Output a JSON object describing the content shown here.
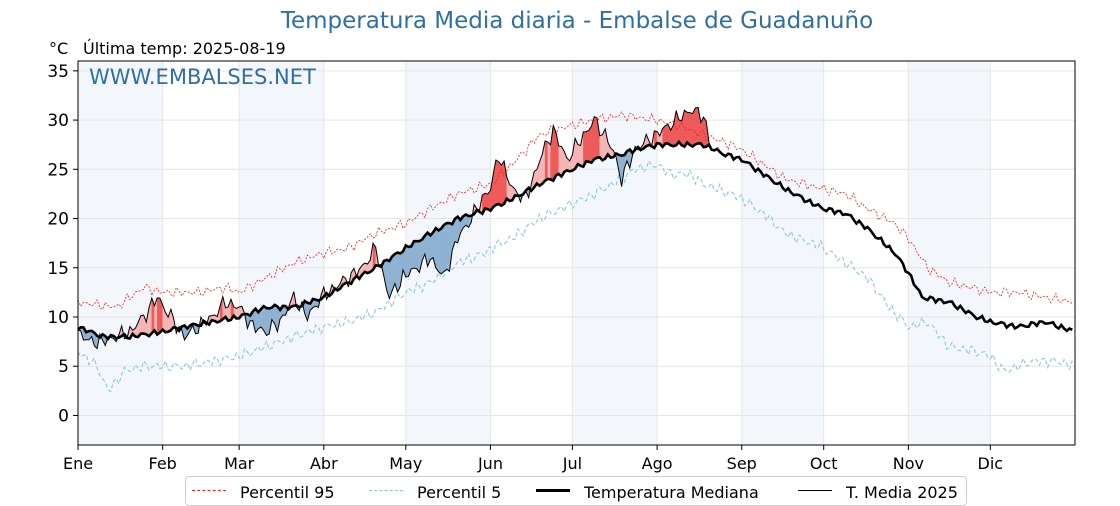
{
  "chart_data": {
    "type": "line",
    "title": "Temperatura Media diaria - Embalse de Guadanuño",
    "unit_label": "°C",
    "last_temp_label": "Última temp: 2025-08-19",
    "watermark": "WWW.EMBALSES.NET",
    "xaxis": {
      "months": [
        "Ene",
        "Feb",
        "Mar",
        "Abr",
        "May",
        "Jun",
        "Jul",
        "Ago",
        "Sep",
        "Oct",
        "Nov",
        "Dic"
      ],
      "month_start_days": [
        1,
        32,
        60,
        91,
        121,
        152,
        182,
        213,
        244,
        274,
        305,
        335
      ],
      "range": [
        1,
        366
      ]
    },
    "yaxis": {
      "range": [
        -3,
        36
      ],
      "ticks": [
        0,
        5,
        10,
        15,
        20,
        25,
        30,
        35
      ]
    },
    "grid": true,
    "legend_position": "bottom",
    "colors": {
      "p95": "#e8241f",
      "p5": "#8ec6dc",
      "median": "#000000",
      "year": "#000000",
      "above_fill": "#f08080",
      "below_fill": "#4a80b0",
      "title": "#2f6fa3",
      "band": "#dce8f5"
    },
    "series": [
      {
        "name": "Percentil 95",
        "key": "p95",
        "points": [
          [
            1,
            11.5
          ],
          [
            15,
            11
          ],
          [
            25,
            13
          ],
          [
            32,
            12.5
          ],
          [
            45,
            12.5
          ],
          [
            55,
            13
          ],
          [
            60,
            12.5
          ],
          [
            70,
            14
          ],
          [
            80,
            15.5
          ],
          [
            91,
            16.5
          ],
          [
            100,
            17
          ],
          [
            110,
            18.5
          ],
          [
            121,
            19.5
          ],
          [
            130,
            21
          ],
          [
            140,
            22.5
          ],
          [
            152,
            23.5
          ],
          [
            160,
            25.5
          ],
          [
            170,
            28.5
          ],
          [
            182,
            29.5
          ],
          [
            190,
            30
          ],
          [
            200,
            30.5
          ],
          [
            213,
            30
          ],
          [
            220,
            29.5
          ],
          [
            230,
            28.5
          ],
          [
            240,
            27.5
          ],
          [
            244,
            27
          ],
          [
            252,
            25.5
          ],
          [
            260,
            24
          ],
          [
            274,
            23
          ],
          [
            282,
            22.5
          ],
          [
            290,
            21
          ],
          [
            300,
            19.5
          ],
          [
            305,
            18
          ],
          [
            312,
            15
          ],
          [
            320,
            13.5
          ],
          [
            328,
            13
          ],
          [
            335,
            12.5
          ],
          [
            345,
            12.5
          ],
          [
            355,
            12
          ],
          [
            366,
            11.5
          ]
        ]
      },
      {
        "name": "Percentil 5",
        "key": "p5",
        "points": [
          [
            1,
            6.5
          ],
          [
            8,
            5
          ],
          [
            12,
            2.5
          ],
          [
            18,
            4.5
          ],
          [
            25,
            5
          ],
          [
            32,
            5
          ],
          [
            40,
            5
          ],
          [
            50,
            5.5
          ],
          [
            60,
            6
          ],
          [
            70,
            7
          ],
          [
            80,
            8
          ],
          [
            91,
            9
          ],
          [
            100,
            9.5
          ],
          [
            110,
            10.5
          ],
          [
            121,
            12.5
          ],
          [
            130,
            13.5
          ],
          [
            140,
            15.5
          ],
          [
            150,
            16.5
          ],
          [
            152,
            17
          ],
          [
            160,
            18
          ],
          [
            170,
            20
          ],
          [
            182,
            21.5
          ],
          [
            190,
            22.5
          ],
          [
            200,
            24
          ],
          [
            205,
            25
          ],
          [
            213,
            25.5
          ],
          [
            218,
            24.5
          ],
          [
            225,
            24.5
          ],
          [
            230,
            23.5
          ],
          [
            240,
            22.5
          ],
          [
            244,
            22
          ],
          [
            252,
            20.5
          ],
          [
            260,
            18.5
          ],
          [
            274,
            17
          ],
          [
            282,
            15.5
          ],
          [
            290,
            14
          ],
          [
            298,
            11
          ],
          [
            305,
            9
          ],
          [
            312,
            9.5
          ],
          [
            320,
            7
          ],
          [
            330,
            6.5
          ],
          [
            335,
            6
          ],
          [
            340,
            4.5
          ],
          [
            350,
            5.5
          ],
          [
            360,
            5.5
          ],
          [
            366,
            5
          ]
        ]
      },
      {
        "name": "Temperatura Mediana",
        "key": "median",
        "points": [
          [
            1,
            9
          ],
          [
            10,
            8
          ],
          [
            20,
            8
          ],
          [
            32,
            8.5
          ],
          [
            40,
            9
          ],
          [
            50,
            9.5
          ],
          [
            60,
            10
          ],
          [
            70,
            11
          ],
          [
            80,
            11
          ],
          [
            91,
            12
          ],
          [
            100,
            13.5
          ],
          [
            110,
            15
          ],
          [
            121,
            17
          ],
          [
            130,
            18.5
          ],
          [
            140,
            20
          ],
          [
            152,
            21
          ],
          [
            160,
            22
          ],
          [
            170,
            23.5
          ],
          [
            182,
            25
          ],
          [
            190,
            26
          ],
          [
            200,
            26.5
          ],
          [
            205,
            27
          ],
          [
            213,
            27.5
          ],
          [
            220,
            27.5
          ],
          [
            230,
            27.5
          ],
          [
            238,
            26.5
          ],
          [
            244,
            26
          ],
          [
            252,
            24.5
          ],
          [
            260,
            23
          ],
          [
            270,
            21.5
          ],
          [
            274,
            21
          ],
          [
            282,
            20.5
          ],
          [
            290,
            19
          ],
          [
            300,
            16.5
          ],
          [
            305,
            14.5
          ],
          [
            310,
            12
          ],
          [
            320,
            11.5
          ],
          [
            330,
            10
          ],
          [
            335,
            9.5
          ],
          [
            345,
            9
          ],
          [
            355,
            9.5
          ],
          [
            366,
            8.5
          ]
        ]
      },
      {
        "name": "T. Media 2025",
        "key": "year",
        "points": [
          [
            1,
            8.5
          ],
          [
            5,
            7.5
          ],
          [
            10,
            7.5
          ],
          [
            15,
            8
          ],
          [
            20,
            8.5
          ],
          [
            25,
            10
          ],
          [
            30,
            12
          ],
          [
            35,
            10
          ],
          [
            40,
            8
          ],
          [
            45,
            9
          ],
          [
            50,
            10
          ],
          [
            55,
            11.5
          ],
          [
            60,
            11
          ],
          [
            65,
            9
          ],
          [
            70,
            8.5
          ],
          [
            75,
            9.5
          ],
          [
            80,
            12
          ],
          [
            85,
            10
          ],
          [
            90,
            12
          ],
          [
            95,
            13
          ],
          [
            100,
            14
          ],
          [
            105,
            15
          ],
          [
            110,
            17
          ],
          [
            115,
            12
          ],
          [
            120,
            14
          ],
          [
            125,
            15
          ],
          [
            130,
            16
          ],
          [
            135,
            14
          ],
          [
            140,
            18
          ],
          [
            145,
            20
          ],
          [
            150,
            22.5
          ],
          [
            152,
            23
          ],
          [
            155,
            26.5
          ],
          [
            160,
            23
          ],
          [
            165,
            22
          ],
          [
            170,
            26
          ],
          [
            175,
            29
          ],
          [
            180,
            26
          ],
          [
            185,
            28
          ],
          [
            190,
            30
          ],
          [
            195,
            28
          ],
          [
            198,
            26
          ],
          [
            200,
            24
          ],
          [
            205,
            27
          ],
          [
            210,
            28
          ],
          [
            215,
            29
          ],
          [
            220,
            30
          ],
          [
            225,
            31
          ],
          [
            230,
            30.5
          ],
          [
            232,
            28
          ]
        ]
      }
    ]
  },
  "legend": [
    {
      "key": "p95",
      "label": "Percentil 95"
    },
    {
      "key": "p5",
      "label": "Percentil 5"
    },
    {
      "key": "median",
      "label": "Temperatura Mediana"
    },
    {
      "key": "year",
      "label": "T. Media 2025"
    }
  ]
}
